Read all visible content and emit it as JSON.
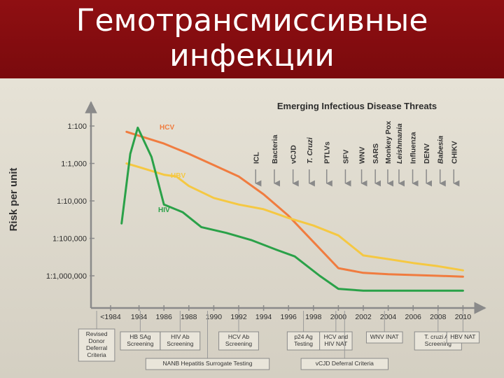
{
  "header": {
    "title_line1": "Гемотрансмиссивные",
    "title_line2": "инфекции"
  },
  "chart_data": {
    "type": "line",
    "title": "Emerging Infectious Disease Threats",
    "ylabel": "Risk per unit",
    "y_scale": "log",
    "y_ticks": [
      "1:100",
      "1:1,000",
      "1:10,000",
      "1:100,000",
      "1:1,000,000"
    ],
    "x_ticks": [
      "<1984",
      "1984",
      "1986",
      "1988",
      "1990",
      "1992",
      "1994",
      "1996",
      "1998",
      "2000",
      "2002",
      "2004",
      "2006",
      "2008",
      "2010"
    ],
    "series": [
      {
        "name": "HCV",
        "color": "#f07c3f",
        "points": [
          [
            1983,
            0.007
          ],
          [
            1984,
            0.0055
          ],
          [
            1986,
            0.0034
          ],
          [
            1988,
            0.0018
          ],
          [
            1990,
            0.0009
          ],
          [
            1992,
            0.00045
          ],
          [
            1994,
            0.00015
          ],
          [
            1996,
            4e-05
          ],
          [
            1998,
            8e-06
          ],
          [
            2000,
            1.6e-06
          ],
          [
            2002,
            1.2e-06
          ],
          [
            2004,
            1.1e-06
          ],
          [
            2006,
            1.05e-06
          ],
          [
            2008,
            1e-06
          ],
          [
            2010,
            9.5e-07
          ]
        ]
      },
      {
        "name": "HBV",
        "color": "#f5c842",
        "points": [
          [
            1983,
            0.001
          ],
          [
            1984,
            0.0008
          ],
          [
            1986,
            0.0005
          ],
          [
            1987,
            0.00045
          ],
          [
            1988,
            0.00025
          ],
          [
            1990,
            0.00012
          ],
          [
            1992,
            8e-05
          ],
          [
            1994,
            6e-05
          ],
          [
            1996,
            3.5e-05
          ],
          [
            1998,
            2.2e-05
          ],
          [
            2000,
            1.2e-05
          ],
          [
            2002,
            3.5e-06
          ],
          [
            2004,
            2.8e-06
          ],
          [
            2006,
            2.2e-06
          ],
          [
            2008,
            1.8e-06
          ],
          [
            2010,
            1.4e-06
          ]
        ]
      },
      {
        "name": "HIV",
        "color": "#2aa148",
        "points": [
          [
            1982.6,
            2.5e-05
          ],
          [
            1983.3,
            0.0018
          ],
          [
            1983.9,
            0.009
          ],
          [
            1985,
            0.0015
          ],
          [
            1986,
            8e-05
          ],
          [
            1987.5,
            5e-05
          ],
          [
            1989,
            2e-05
          ],
          [
            1991,
            1.4e-05
          ],
          [
            1993,
            9e-06
          ],
          [
            1995,
            5e-06
          ],
          [
            1996.5,
            3.3e-06
          ],
          [
            1998.5,
            1e-06
          ],
          [
            2000,
            4.5e-07
          ],
          [
            2002,
            4e-07
          ],
          [
            2006,
            4e-07
          ],
          [
            2010,
            4e-07
          ]
        ]
      }
    ],
    "threats": [
      {
        "label": "ICL",
        "year": 1993.7
      },
      {
        "label": "Bacteria",
        "year": 1995.2
      },
      {
        "label": "vCJD",
        "year": 1996.7
      },
      {
        "label": "T. Cruzi",
        "year": 1998
      },
      {
        "label": "PTLVs",
        "year": 1999.4
      },
      {
        "label": "SFV",
        "year": 2000.9
      },
      {
        "label": "WNV",
        "year": 2002.2
      },
      {
        "label": "SARS",
        "year": 2003.3
      },
      {
        "label": "Monkey Pox",
        "year": 2004.3
      },
      {
        "label": "Leishmania",
        "year": 2005.2
      },
      {
        "label": "Influenza",
        "year": 2006.3
      },
      {
        "label": "DENV",
        "year": 2007.4
      },
      {
        "label": "Babesia",
        "year": 2008.5
      },
      {
        "label": "CHIKV",
        "year": 2009.6
      }
    ],
    "annotations_top": [
      {
        "lines": [
          "Revised",
          "Donor",
          "Deferral",
          "Criteria"
        ],
        "year": 1983
      },
      {
        "lines": [
          "HB SAg",
          "Screening"
        ],
        "year": 1984
      },
      {
        "lines": [
          "HIV Ab",
          "Screening"
        ],
        "year": 1986
      },
      {
        "lines": [
          "HCV Ab",
          "Screening"
        ],
        "year": 1990
      },
      {
        "lines": [
          "p24 Ag",
          "Testing"
        ],
        "year": 1996
      },
      {
        "lines": [
          "HCV and",
          "HIV NAT"
        ],
        "year": 1999
      },
      {
        "lines": [
          "WNV INAT"
        ],
        "year": 2003
      },
      {
        "lines": [
          "T. cruzi Ab",
          "Screening"
        ],
        "year": 2007
      },
      {
        "lines": [
          "HBV NAT"
        ],
        "year": 2009
      }
    ],
    "annotations_bottom": [
      {
        "lines": [
          "NANB Hepatitis Surrogate Testing"
        ],
        "year": 1987
      },
      {
        "lines": [
          "vCJD Deferral Criteria"
        ],
        "year": 2000
      }
    ]
  }
}
